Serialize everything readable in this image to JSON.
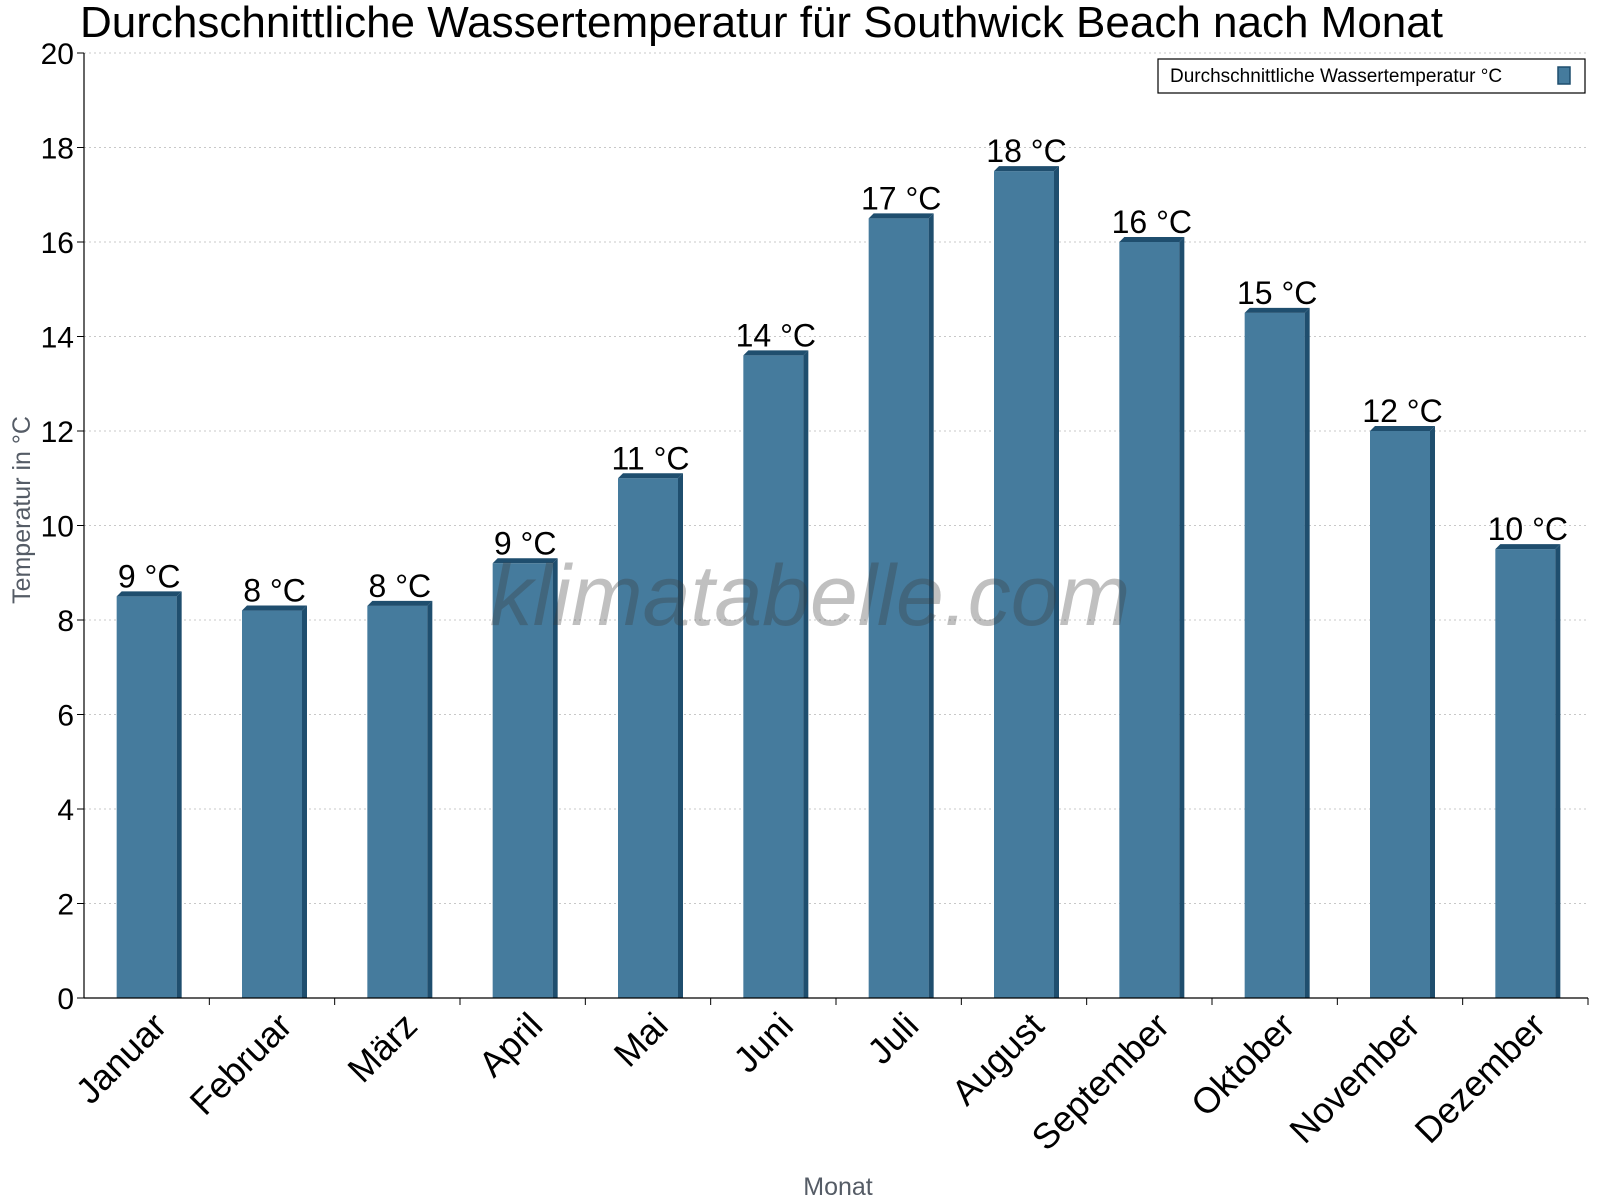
{
  "chart_data": {
    "type": "bar",
    "title": "Durchschnittliche Wassertemperatur für Southwick Beach nach Monat",
    "xlabel": "Monat",
    "ylabel": "Temperatur in °C",
    "ylim": [
      0,
      20
    ],
    "yticks": [
      "0",
      "2",
      "4",
      "6",
      "8",
      "10",
      "12",
      "14",
      "16",
      "18",
      "20"
    ],
    "categories": [
      "Januar",
      "Februar",
      "März",
      "April",
      "Mai",
      "Juni",
      "Juli",
      "August",
      "September",
      "Oktober",
      "November",
      "Dezember"
    ],
    "series": [
      {
        "name": "Durchschnittliche Wassertemperatur °C",
        "values": [
          8.5,
          8.2,
          8.3,
          9.2,
          11.0,
          13.6,
          16.5,
          17.5,
          16.0,
          14.5,
          12.0,
          9.5
        ],
        "labels": [
          "9 °C",
          "8 °C",
          "8 °C",
          "9 °C",
          "11 °C",
          "14 °C",
          "17 °C",
          "18 °C",
          "16 °C",
          "15 °C",
          "12 °C",
          "10 °C"
        ],
        "color": "#457b9d",
        "edge_color": "#1f4e6e"
      }
    ],
    "grid": true,
    "legend_position": "top-right"
  },
  "watermark": "klimatabelle.com"
}
